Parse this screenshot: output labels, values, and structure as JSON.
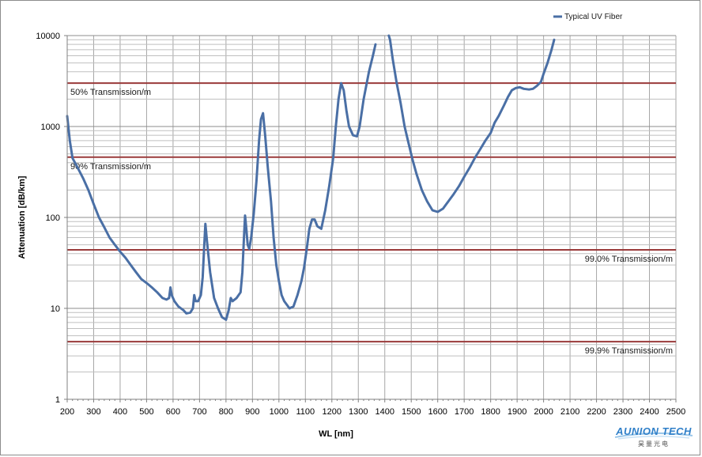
{
  "chart_data": {
    "type": "line",
    "xlabel": "WL [nm]",
    "ylabel": "Attenuation [dB/km]",
    "y_scale": "log",
    "xlim": [
      200,
      2500
    ],
    "ylim": [
      1,
      10000
    ],
    "grid": true,
    "legend_position": "top-right",
    "x_ticks": [
      "200",
      "300",
      "400",
      "500",
      "600",
      "700",
      "800",
      "900",
      "1000",
      "1100",
      "1200",
      "1300",
      "1400",
      "1500",
      "1600",
      "1700",
      "1800",
      "1900",
      "2000",
      "2100",
      "2200",
      "2300",
      "2400",
      "2500"
    ],
    "y_ticks": [
      "1",
      "10",
      "100",
      "1000",
      "10000"
    ],
    "series": [
      {
        "name": "Typical UV Fiber",
        "color": "#4a6fa5",
        "segments": [
          [
            [
              200,
              1300
            ],
            [
              210,
              700
            ],
            [
              220,
              450
            ],
            [
              240,
              350
            ],
            [
              260,
              270
            ],
            [
              280,
              200
            ],
            [
              300,
              140
            ],
            [
              320,
              100
            ],
            [
              340,
              78
            ],
            [
              360,
              60
            ],
            [
              380,
              50
            ],
            [
              400,
              42
            ],
            [
              420,
              36
            ],
            [
              440,
              30
            ],
            [
              460,
              25
            ],
            [
              480,
              21
            ],
            [
              500,
              19
            ],
            [
              520,
              17
            ],
            [
              540,
              15
            ],
            [
              560,
              13
            ],
            [
              575,
              12.5
            ],
            [
              585,
              13
            ],
            [
              590,
              17
            ],
            [
              595,
              14
            ],
            [
              605,
              12
            ],
            [
              620,
              10.5
            ],
            [
              640,
              9.5
            ],
            [
              650,
              8.8
            ],
            [
              665,
              9
            ],
            [
              675,
              10
            ],
            [
              680,
              14
            ],
            [
              685,
              12
            ],
            [
              695,
              12
            ],
            [
              705,
              14
            ],
            [
              712,
              22
            ],
            [
              718,
              50
            ],
            [
              722,
              85
            ],
            [
              728,
              55
            ],
            [
              740,
              25
            ],
            [
              755,
              13
            ],
            [
              770,
              10
            ],
            [
              785,
              8
            ],
            [
              800,
              7.5
            ],
            [
              810,
              9.5
            ],
            [
              818,
              13
            ],
            [
              825,
              12
            ],
            [
              840,
              13
            ],
            [
              855,
              15
            ],
            [
              862,
              25
            ],
            [
              868,
              60
            ],
            [
              872,
              105
            ],
            [
              876,
              80
            ],
            [
              882,
              50
            ],
            [
              888,
              45
            ],
            [
              895,
              60
            ],
            [
              905,
              110
            ],
            [
              915,
              250
            ],
            [
              925,
              700
            ],
            [
              932,
              1200
            ],
            [
              940,
              1400
            ],
            [
              948,
              800
            ],
            [
              958,
              350
            ],
            [
              970,
              150
            ],
            [
              980,
              60
            ],
            [
              990,
              30
            ],
            [
              1000,
              20
            ],
            [
              1010,
              14
            ],
            [
              1020,
              12
            ],
            [
              1040,
              10
            ],
            [
              1055,
              10.5
            ],
            [
              1070,
              14
            ],
            [
              1085,
              20
            ],
            [
              1095,
              28
            ],
            [
              1105,
              45
            ],
            [
              1115,
              75
            ],
            [
              1125,
              95
            ],
            [
              1135,
              95
            ],
            [
              1145,
              80
            ],
            [
              1160,
              75
            ],
            [
              1175,
              120
            ],
            [
              1190,
              220
            ],
            [
              1205,
              450
            ],
            [
              1215,
              1000
            ],
            [
              1225,
              2000
            ],
            [
              1235,
              3000
            ],
            [
              1245,
              2500
            ],
            [
              1255,
              1500
            ],
            [
              1265,
              1000
            ],
            [
              1280,
              800
            ],
            [
              1295,
              780
            ],
            [
              1305,
              1000
            ],
            [
              1320,
              2000
            ],
            [
              1340,
              4000
            ],
            [
              1355,
              6000
            ],
            [
              1365,
              8000
            ]
          ],
          [
            [
              1415,
              10000
            ],
            [
              1420,
              9000
            ],
            [
              1430,
              5500
            ],
            [
              1445,
              3000
            ],
            [
              1460,
              1800
            ],
            [
              1475,
              1000
            ],
            [
              1490,
              650
            ],
            [
              1505,
              430
            ],
            [
              1520,
              300
            ],
            [
              1540,
              200
            ],
            [
              1560,
              150
            ],
            [
              1580,
              120
            ],
            [
              1600,
              115
            ],
            [
              1620,
              125
            ],
            [
              1640,
              150
            ],
            [
              1660,
              180
            ],
            [
              1680,
              220
            ],
            [
              1700,
              280
            ],
            [
              1720,
              350
            ],
            [
              1740,
              450
            ],
            [
              1760,
              560
            ],
            [
              1780,
              700
            ],
            [
              1800,
              850
            ],
            [
              1815,
              1100
            ],
            [
              1830,
              1300
            ],
            [
              1850,
              1700
            ],
            [
              1865,
              2100
            ],
            [
              1880,
              2500
            ],
            [
              1895,
              2650
            ],
            [
              1910,
              2700
            ],
            [
              1925,
              2600
            ],
            [
              1945,
              2550
            ],
            [
              1960,
              2600
            ],
            [
              1975,
              2800
            ],
            [
              1990,
              3100
            ],
            [
              2000,
              3800
            ],
            [
              2015,
              5000
            ],
            [
              2030,
              7000
            ],
            [
              2040,
              9000
            ]
          ]
        ]
      }
    ],
    "reference_lines": [
      {
        "label": "50% Transmission/m",
        "y": 3000,
        "label_side": "left"
      },
      {
        "label": "90% Transmission/m",
        "y": 460,
        "label_side": "left"
      },
      {
        "label": "99.0% Transmission/m",
        "y": 44,
        "label_side": "right"
      },
      {
        "label": "99.9% Transmission/m",
        "y": 4.3,
        "label_side": "right"
      }
    ]
  },
  "logo": {
    "name": "AUNION TECH",
    "subtitle": "昊量光电"
  }
}
